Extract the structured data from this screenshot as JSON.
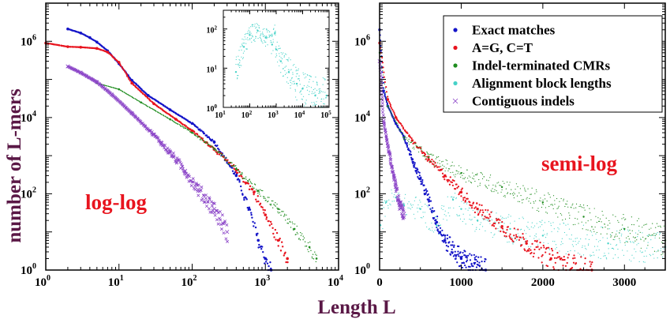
{
  "colors": {
    "exact": "#1414c8",
    "ag_ct": "#e8141e",
    "indel_cmr": "#1e8c1e",
    "alignment": "#46d2c8",
    "contig_indel": "#8c46c8",
    "axis_label": "#5a1846",
    "annotation": "#e8141e"
  },
  "figure": {
    "ylabel": "number of L-mers",
    "xlabel": "Length L"
  },
  "chart_data": [
    {
      "id": "log-log",
      "type": "scatter",
      "scale": "log-log",
      "annotation": "log-log",
      "xlim": [
        1,
        10000
      ],
      "ylim": [
        1,
        10000000
      ],
      "x_ticks": [
        {
          "base": "10",
          "exp": "0"
        },
        {
          "base": "10",
          "exp": "1"
        },
        {
          "base": "10",
          "exp": "2"
        },
        {
          "base": "10",
          "exp": "3"
        },
        {
          "base": "10",
          "exp": "4"
        }
      ],
      "y_ticks": [
        {
          "base": "10",
          "exp": "0"
        },
        {
          "base": "10",
          "exp": "2"
        },
        {
          "base": "10",
          "exp": "4"
        },
        {
          "base": "10",
          "exp": "6"
        }
      ],
      "series": [
        {
          "name": "Exact matches",
          "color": "exact",
          "points": [
            [
              2,
              2100000
            ],
            [
              3,
              1650000
            ],
            [
              4,
              1250000
            ],
            [
              5,
              950000
            ],
            [
              7,
              560000
            ],
            [
              10,
              260000
            ],
            [
              15,
              95000
            ],
            [
              25,
              38000
            ],
            [
              50,
              16000
            ],
            [
              100,
              7000
            ],
            [
              200,
              2300
            ],
            [
              400,
              300
            ],
            [
              600,
              40
            ],
            [
              800,
              6
            ],
            [
              1000,
              2
            ],
            [
              1200,
              1
            ]
          ]
        },
        {
          "name": "A=G, C=T",
          "color": "ag_ct",
          "points": [
            [
              1,
              900000
            ],
            [
              2,
              720000
            ],
            [
              3,
              700000
            ],
            [
              5,
              650000
            ],
            [
              7,
              520000
            ],
            [
              10,
              280000
            ],
            [
              15,
              80000
            ],
            [
              30,
              23000
            ],
            [
              60,
              9000
            ],
            [
              100,
              4500
            ],
            [
              200,
              1500
            ],
            [
              400,
              420
            ],
            [
              700,
              110
            ],
            [
              1000,
              28
            ],
            [
              1500,
              6
            ],
            [
              2000,
              2
            ]
          ]
        },
        {
          "name": "Indel-terminated CMRs",
          "color": "indel_cmr",
          "points": [
            [
              5,
              80000
            ],
            [
              10,
              55000
            ],
            [
              20,
              25000
            ],
            [
              50,
              9000
            ],
            [
              100,
              4000
            ],
            [
              200,
              1500
            ],
            [
              400,
              450
            ],
            [
              800,
              120
            ],
            [
              1500,
              40
            ],
            [
              2500,
              12
            ],
            [
              4000,
              4
            ],
            [
              5000,
              2
            ]
          ]
        },
        {
          "name": "Contiguous indels",
          "color": "contig_indel",
          "points": [
            [
              2,
              220000
            ],
            [
              3,
              150000
            ],
            [
              5,
              85000
            ],
            [
              8,
              40000
            ],
            [
              15,
              13000
            ],
            [
              30,
              3500
            ],
            [
              50,
              1200
            ],
            [
              80,
              400
            ],
            [
              120,
              130
            ],
            [
              200,
              40
            ],
            [
              300,
              10
            ]
          ]
        }
      ],
      "inset": {
        "scale": "log-log",
        "xlim": [
          10,
          100000
        ],
        "ylim": [
          1,
          300
        ],
        "x_ticks": [
          {
            "base": "10",
            "exp": "1"
          },
          {
            "base": "10",
            "exp": "2"
          },
          {
            "base": "10",
            "exp": "3"
          },
          {
            "base": "10",
            "exp": "4"
          },
          {
            "base": "10",
            "exp": "5"
          }
        ],
        "y_ticks": [
          {
            "base": "10",
            "exp": "0"
          },
          {
            "base": "10",
            "exp": "1"
          },
          {
            "base": "10",
            "exp": "2"
          }
        ],
        "series": [
          {
            "name": "Alignment block lengths",
            "color": "alignment",
            "points": [
              [
                30,
                8
              ],
              [
                60,
                35
              ],
              [
                100,
                70
              ],
              [
                200,
                90
              ],
              [
                400,
                60
              ],
              [
                700,
                40
              ],
              [
                900,
                80
              ],
              [
                1000,
                30
              ],
              [
                1500,
                15
              ],
              [
                3000,
                8
              ],
              [
                6000,
                4
              ],
              [
                10000,
                3
              ],
              [
                30000,
                2
              ],
              [
                80000,
                2
              ]
            ]
          }
        ]
      }
    },
    {
      "id": "semi-log",
      "type": "scatter",
      "scale": "semi-log",
      "annotation": "semi-log",
      "xlim": [
        0,
        3500
      ],
      "ylim": [
        1,
        10000000
      ],
      "x_ticks": [
        "0",
        "1000",
        "2000",
        "3000"
      ],
      "y_ticks": [
        {
          "base": "10",
          "exp": "0"
        },
        {
          "base": "10",
          "exp": "2"
        },
        {
          "base": "10",
          "exp": "4"
        },
        {
          "base": "10",
          "exp": "6"
        }
      ],
      "legend": {
        "position": "top-right",
        "entries": [
          {
            "label": "Exact matches",
            "color": "exact",
            "marker": "dot"
          },
          {
            "label": "A=G, C=T",
            "color": "ag_ct",
            "marker": "dot"
          },
          {
            "label": "Indel-terminated CMRs",
            "color": "indel_cmr",
            "marker": "dot"
          },
          {
            "label": "Alignment block lengths",
            "color": "alignment",
            "marker": "dot"
          },
          {
            "label": "Contiguous indels",
            "color": "contig_indel",
            "marker": "x"
          }
        ]
      },
      "series": [
        {
          "name": "Exact matches",
          "color": "exact",
          "points": [
            [
              0,
              2000000
            ],
            [
              50,
              50000
            ],
            [
              100,
              20000
            ],
            [
              200,
              7000
            ],
            [
              300,
              3000
            ],
            [
              400,
              800
            ],
            [
              500,
              250
            ],
            [
              600,
              70
            ],
            [
              700,
              18
            ],
            [
              800,
              6
            ],
            [
              1000,
              2
            ],
            [
              1300,
              1
            ]
          ]
        },
        {
          "name": "A=G, C=T",
          "color": "ag_ct",
          "points": [
            [
              0,
              900000
            ],
            [
              100,
              30000
            ],
            [
              200,
              10000
            ],
            [
              400,
              2500
            ],
            [
              600,
              800
            ],
            [
              800,
              300
            ],
            [
              1000,
              110
            ],
            [
              1200,
              40
            ],
            [
              1500,
              14
            ],
            [
              1800,
              5
            ],
            [
              2100,
              2
            ],
            [
              2600,
              1
            ]
          ]
        },
        {
          "name": "Indel-terminated CMRs",
          "color": "indel_cmr",
          "points": [
            [
              0,
              500000
            ],
            [
              100,
              20000
            ],
            [
              300,
              3000
            ],
            [
              600,
              900
            ],
            [
              1000,
              350
            ],
            [
              1500,
              150
            ],
            [
              2000,
              60
            ],
            [
              2500,
              25
            ],
            [
              3000,
              12
            ],
            [
              3500,
              6
            ]
          ]
        },
        {
          "name": "Alignment block lengths",
          "color": "alignment",
          "points": [
            [
              10,
              15
            ],
            [
              80,
              60
            ],
            [
              200,
              80
            ],
            [
              300,
              50
            ],
            [
              500,
              40
            ],
            [
              700,
              15
            ],
            [
              900,
              70
            ],
            [
              1000,
              40
            ],
            [
              1200,
              20
            ],
            [
              1600,
              12
            ],
            [
              2000,
              8
            ],
            [
              2800,
              5
            ],
            [
              3500,
              4
            ]
          ]
        },
        {
          "name": "Contiguous indels",
          "color": "contig_indel",
          "points": [
            [
              0,
              300000
            ],
            [
              50,
              8000
            ],
            [
              100,
              1800
            ],
            [
              150,
              500
            ],
            [
              200,
              150
            ],
            [
              250,
              50
            ],
            [
              300,
              30
            ]
          ]
        }
      ]
    }
  ]
}
